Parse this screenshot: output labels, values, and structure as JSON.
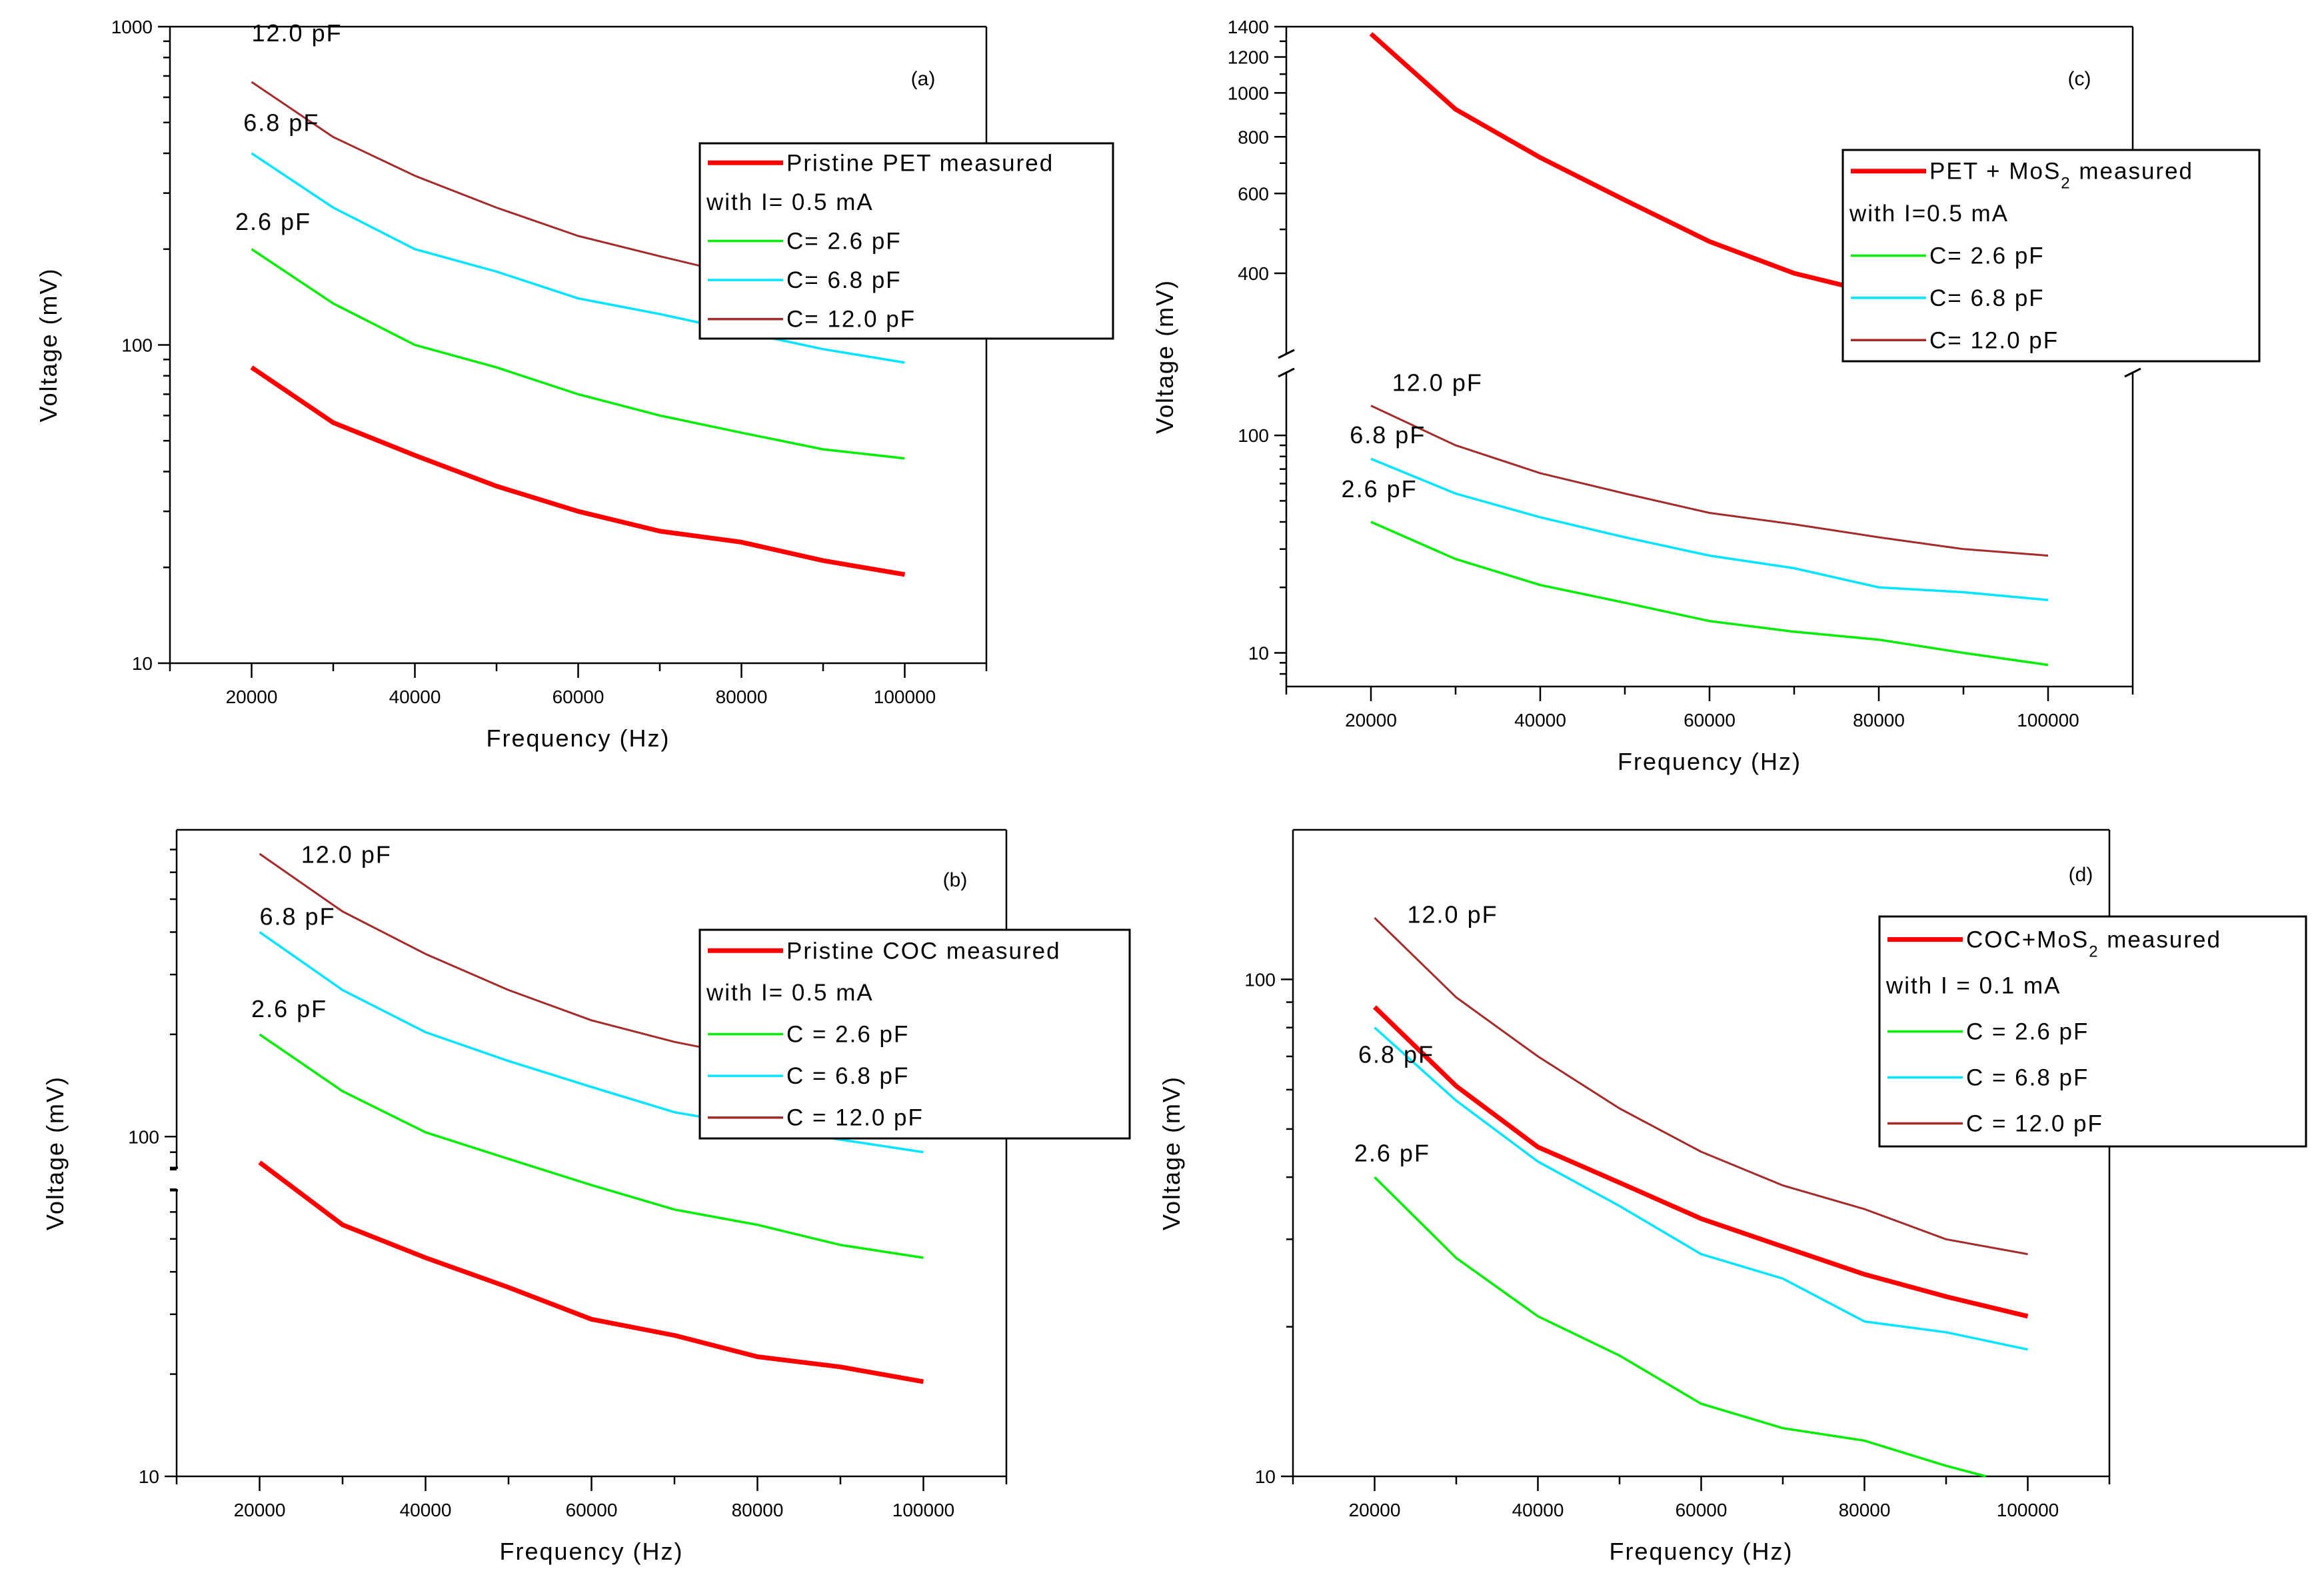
{
  "colors": {
    "measured": "#ff0000",
    "c_2_6": "#00ee00",
    "c_6_8": "#00e5ff",
    "c_12_0": "#a52a2a",
    "axis": "#000000"
  },
  "chart_data": [
    {
      "id": "a",
      "type": "line",
      "panel_label": "(a)",
      "xlabel": "Frequency (Hz)",
      "ylabel": "Voltage (mV)",
      "xlim": [
        10000,
        110000
      ],
      "ylim": [
        10,
        1000
      ],
      "yscale": "log",
      "xticks": [
        20000,
        40000,
        60000,
        80000,
        100000
      ],
      "yticks": [
        10,
        100,
        1000
      ],
      "x": [
        20000,
        30000,
        40000,
        50000,
        60000,
        70000,
        80000,
        90000,
        100000
      ],
      "series": [
        {
          "name": "Pristine PET measured",
          "key": "measured",
          "values": [
            85,
            57,
            45,
            36,
            30,
            26,
            24,
            21,
            19
          ]
        },
        {
          "name": "C= 2.6 pF",
          "key": "c_2_6",
          "values": [
            200,
            135,
            100,
            85,
            70,
            60,
            53,
            47,
            44
          ]
        },
        {
          "name": "C= 6.8 pF",
          "key": "c_6_8",
          "values": [
            400,
            270,
            200,
            170,
            140,
            125,
            110,
            97,
            88
          ]
        },
        {
          "name": "C= 12.0 pF",
          "key": "c_12_0",
          "values": [
            670,
            450,
            340,
            270,
            220,
            190,
            165,
            150,
            140
          ]
        }
      ],
      "legend": {
        "entries": [
          {
            "key": "measured",
            "label": "Pristine PET measured"
          },
          {
            "key": null,
            "label": "with I= 0.5 mA"
          },
          {
            "key": "c_2_6",
            "label": "C= 2.6 pF"
          },
          {
            "key": "c_6_8",
            "label": "C= 6.8 pF"
          },
          {
            "key": "c_12_0",
            "label": "C= 12.0 pF"
          }
        ]
      },
      "annotations": [
        {
          "text": "12.0 pF",
          "x": 20000,
          "y": 900
        },
        {
          "text": "6.8 pF",
          "x": 19000,
          "y": 470
        },
        {
          "text": "2.6 pF",
          "x": 18000,
          "y": 230
        }
      ]
    },
    {
      "id": "c",
      "type": "line",
      "panel_label": "(c)",
      "xlabel": "Frequency (Hz)",
      "ylabel": "Voltage (mV)",
      "xlim": [
        10000,
        110000
      ],
      "yscale": "log-broken",
      "upper_range": [
        300,
        1400
      ],
      "lower_range": [
        7,
        170
      ],
      "upper_ticks": [
        400,
        600,
        800,
        1000,
        1200,
        1400
      ],
      "lower_ticks": [
        10,
        100
      ],
      "xticks": [
        20000,
        40000,
        60000,
        80000,
        100000
      ],
      "x": [
        20000,
        30000,
        40000,
        50000,
        60000,
        70000,
        80000,
        90000,
        100000
      ],
      "series": [
        {
          "name": "PET + MoS2 measured",
          "key": "measured",
          "values": [
            1350,
            920,
            720,
            580,
            470,
            400,
            360,
            340,
            330
          ]
        },
        {
          "name": "C= 2.6 pF",
          "key": "c_2_6",
          "values": [
            40,
            27,
            20.5,
            17,
            14,
            12.5,
            11.5,
            10,
            8.8
          ]
        },
        {
          "name": "C= 6.8 pF",
          "key": "c_6_8",
          "values": [
            78,
            54,
            42,
            34,
            28,
            24.5,
            20,
            19,
            17.5
          ]
        },
        {
          "name": "C= 12.0 pF",
          "key": "c_12_0",
          "values": [
            137,
            90,
            67,
            54,
            44,
            39,
            34,
            30,
            28
          ]
        }
      ],
      "legend": {
        "entries": [
          {
            "key": "measured",
            "label": "PET + MoS",
            "sub": "2",
            "suffix": " measured"
          },
          {
            "key": null,
            "label": "with I=0.5 mA"
          },
          {
            "key": "c_2_6",
            "label": "C= 2.6 pF"
          },
          {
            "key": "c_6_8",
            "label": "C= 6.8 pF"
          },
          {
            "key": "c_12_0",
            "label": "C= 12.0 pF"
          }
        ]
      },
      "annotations": [
        {
          "text": "12.0 pF",
          "x": 22500,
          "y": 160
        },
        {
          "text": "6.8 pF",
          "x": 17500,
          "y": 92
        },
        {
          "text": "2.6 pF",
          "x": 16500,
          "y": 52
        }
      ]
    },
    {
      "id": "b",
      "type": "line",
      "panel_label": "(b)",
      "xlabel": "Frequency (Hz)",
      "ylabel": "Voltage (mV)",
      "xlim": [
        10000,
        110000
      ],
      "ylim": [
        10,
        800
      ],
      "yscale": "log",
      "xticks": [
        20000,
        40000,
        60000,
        80000,
        100000
      ],
      "yticks": [
        10,
        100
      ],
      "x": [
        20000,
        30000,
        40000,
        50000,
        60000,
        70000,
        80000,
        90000,
        100000
      ],
      "series": [
        {
          "name": "Pristine COC measured",
          "key": "measured",
          "values": [
            84,
            55,
            44,
            36,
            29,
            26,
            22.5,
            21,
            19
          ]
        },
        {
          "name": "C = 2.6 pF",
          "key": "c_2_6",
          "values": [
            200,
            136,
            103,
            86,
            72,
            61,
            55,
            48,
            44
          ]
        },
        {
          "name": "C = 6.8 pF",
          "key": "c_6_8",
          "values": [
            400,
            270,
            203,
            167,
            140,
            118,
            107,
            98,
            90
          ]
        },
        {
          "name": "C = 12.0 pF",
          "key": "c_12_0",
          "values": [
            680,
            460,
            345,
            270,
            220,
            190,
            170,
            155,
            145
          ]
        }
      ],
      "legend": {
        "entries": [
          {
            "key": "measured",
            "label": "Pristine COC measured"
          },
          {
            "key": null,
            "label": "with I= 0.5 mA"
          },
          {
            "key": "c_2_6",
            "label": "C = 2.6 pF"
          },
          {
            "key": "c_6_8",
            "label": "C = 6.8 pF"
          },
          {
            "key": "c_12_0",
            "label": "C = 12.0 pF"
          }
        ]
      },
      "annotations": [
        {
          "text": "12.0 pF",
          "x": 25000,
          "y": 640
        },
        {
          "text": "6.8 pF",
          "x": 20000,
          "y": 420
        },
        {
          "text": "2.6 pF",
          "x": 19000,
          "y": 225
        }
      ]
    },
    {
      "id": "d",
      "type": "line",
      "panel_label": "(d)",
      "xlabel": "Frequency (Hz)",
      "ylabel": "Voltage (mV)",
      "xlim": [
        10000,
        110000
      ],
      "ylim": [
        10,
        200
      ],
      "yscale": "log",
      "xticks": [
        20000,
        40000,
        60000,
        80000,
        100000
      ],
      "yticks": [
        10,
        100
      ],
      "x": [
        20000,
        30000,
        40000,
        50000,
        60000,
        70000,
        80000,
        90000,
        100000
      ],
      "series": [
        {
          "name": "COC+MoS2 measured",
          "key": "measured",
          "values": [
            88,
            61,
            46,
            39,
            33,
            29,
            25.5,
            23,
            21
          ]
        },
        {
          "name": "C = 2.6 pF",
          "key": "c_2_6",
          "values": [
            40,
            27.5,
            21,
            17.5,
            14,
            12.5,
            11.8,
            10.5,
            9.5
          ]
        },
        {
          "name": "C = 6.8 pF",
          "key": "c_6_8",
          "values": [
            80,
            57,
            43,
            35,
            28,
            25,
            20.5,
            19.5,
            18
          ]
        },
        {
          "name": "C = 12.0 pF",
          "key": "c_12_0",
          "values": [
            133,
            92,
            70,
            55,
            45,
            38.5,
            34.5,
            30,
            28
          ]
        }
      ],
      "legend": {
        "entries": [
          {
            "key": "measured",
            "label": "COC+MoS",
            "sub": "2",
            "suffix": " measured"
          },
          {
            "key": null,
            "label": "with I = 0.1 mA"
          },
          {
            "key": "c_2_6",
            "label": "C = 2.6 pF"
          },
          {
            "key": "c_6_8",
            "label": "C = 6.8 pF"
          },
          {
            "key": "c_12_0",
            "label": "C = 12.0 pF"
          }
        ]
      },
      "annotations": [
        {
          "text": "12.0 pF",
          "x": 24000,
          "y": 130
        },
        {
          "text": "6.8 pF",
          "x": 18000,
          "y": 68
        },
        {
          "text": "2.6 pF",
          "x": 17500,
          "y": 43
        }
      ]
    }
  ]
}
